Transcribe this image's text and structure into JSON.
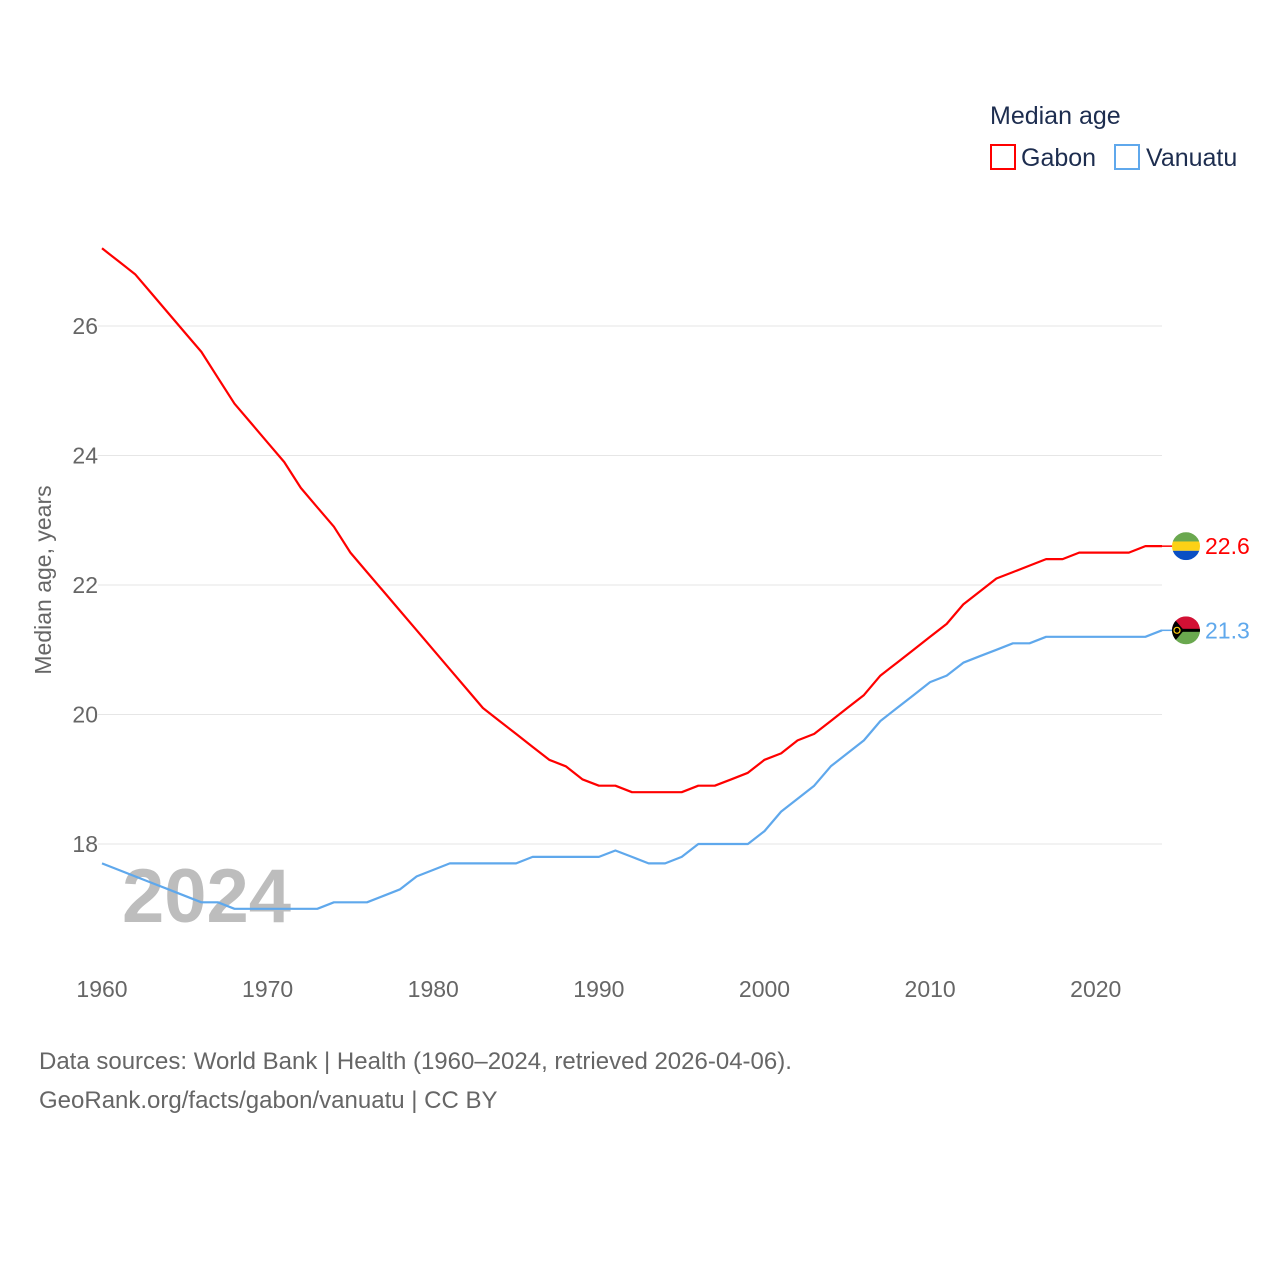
{
  "chart_data": {
    "type": "line",
    "title": "",
    "xlabel": "",
    "ylabel": "Median age, years",
    "xlim": [
      1960,
      2024
    ],
    "ylim": [
      16.2,
      27.5
    ],
    "x_ticks": [
      1960,
      1970,
      1980,
      1990,
      2000,
      2010,
      2020
    ],
    "y_ticks": [
      18,
      20,
      22,
      24,
      26
    ],
    "grid": true,
    "legend": {
      "title": "Median age",
      "placement": "top-right"
    },
    "year_label": "2024",
    "x": [
      1960,
      1961,
      1962,
      1963,
      1964,
      1965,
      1966,
      1967,
      1968,
      1969,
      1970,
      1971,
      1972,
      1973,
      1974,
      1975,
      1976,
      1977,
      1978,
      1979,
      1980,
      1981,
      1982,
      1983,
      1984,
      1985,
      1986,
      1987,
      1988,
      1989,
      1990,
      1991,
      1992,
      1993,
      1994,
      1995,
      1996,
      1997,
      1998,
      1999,
      2000,
      2001,
      2002,
      2003,
      2004,
      2005,
      2006,
      2007,
      2008,
      2009,
      2010,
      2011,
      2012,
      2013,
      2014,
      2015,
      2016,
      2017,
      2018,
      2019,
      2020,
      2021,
      2022,
      2023,
      2024
    ],
    "series": [
      {
        "name": "Gabon",
        "color": "#ff0000",
        "end_label": "22.6",
        "values": [
          27.2,
          27.0,
          26.8,
          26.5,
          26.2,
          25.9,
          25.6,
          25.2,
          24.8,
          24.5,
          24.2,
          23.9,
          23.5,
          23.2,
          22.9,
          22.5,
          22.2,
          21.9,
          21.6,
          21.3,
          21.0,
          20.7,
          20.4,
          20.1,
          19.9,
          19.7,
          19.5,
          19.3,
          19.2,
          19.0,
          18.9,
          18.9,
          18.8,
          18.8,
          18.8,
          18.8,
          18.9,
          18.9,
          19.0,
          19.1,
          19.3,
          19.4,
          19.6,
          19.7,
          19.9,
          20.1,
          20.3,
          20.6,
          20.8,
          21.0,
          21.2,
          21.4,
          21.7,
          21.9,
          22.1,
          22.2,
          22.3,
          22.4,
          22.4,
          22.5,
          22.5,
          22.5,
          22.5,
          22.6,
          22.6
        ]
      },
      {
        "name": "Vanuatu",
        "color": "#5fa8ec",
        "end_label": "21.3",
        "values": [
          17.7,
          17.6,
          17.5,
          17.4,
          17.3,
          17.2,
          17.1,
          17.1,
          17.0,
          17.0,
          17.0,
          17.0,
          17.0,
          17.0,
          17.1,
          17.1,
          17.1,
          17.2,
          17.3,
          17.5,
          17.6,
          17.7,
          17.7,
          17.7,
          17.7,
          17.7,
          17.8,
          17.8,
          17.8,
          17.8,
          17.8,
          17.9,
          17.8,
          17.7,
          17.7,
          17.8,
          18.0,
          18.0,
          18.0,
          18.0,
          18.2,
          18.5,
          18.7,
          18.9,
          19.2,
          19.4,
          19.6,
          19.9,
          20.1,
          20.3,
          20.5,
          20.6,
          20.8,
          20.9,
          21.0,
          21.1,
          21.1,
          21.2,
          21.2,
          21.2,
          21.2,
          21.2,
          21.2,
          21.2,
          21.3
        ]
      }
    ]
  },
  "footer": {
    "line1": "Data sources: World Bank | Health (1960–2024, retrieved 2026-04-06).",
    "line2": "GeoRank.org/facts/gabon/vanuatu | CC BY"
  }
}
